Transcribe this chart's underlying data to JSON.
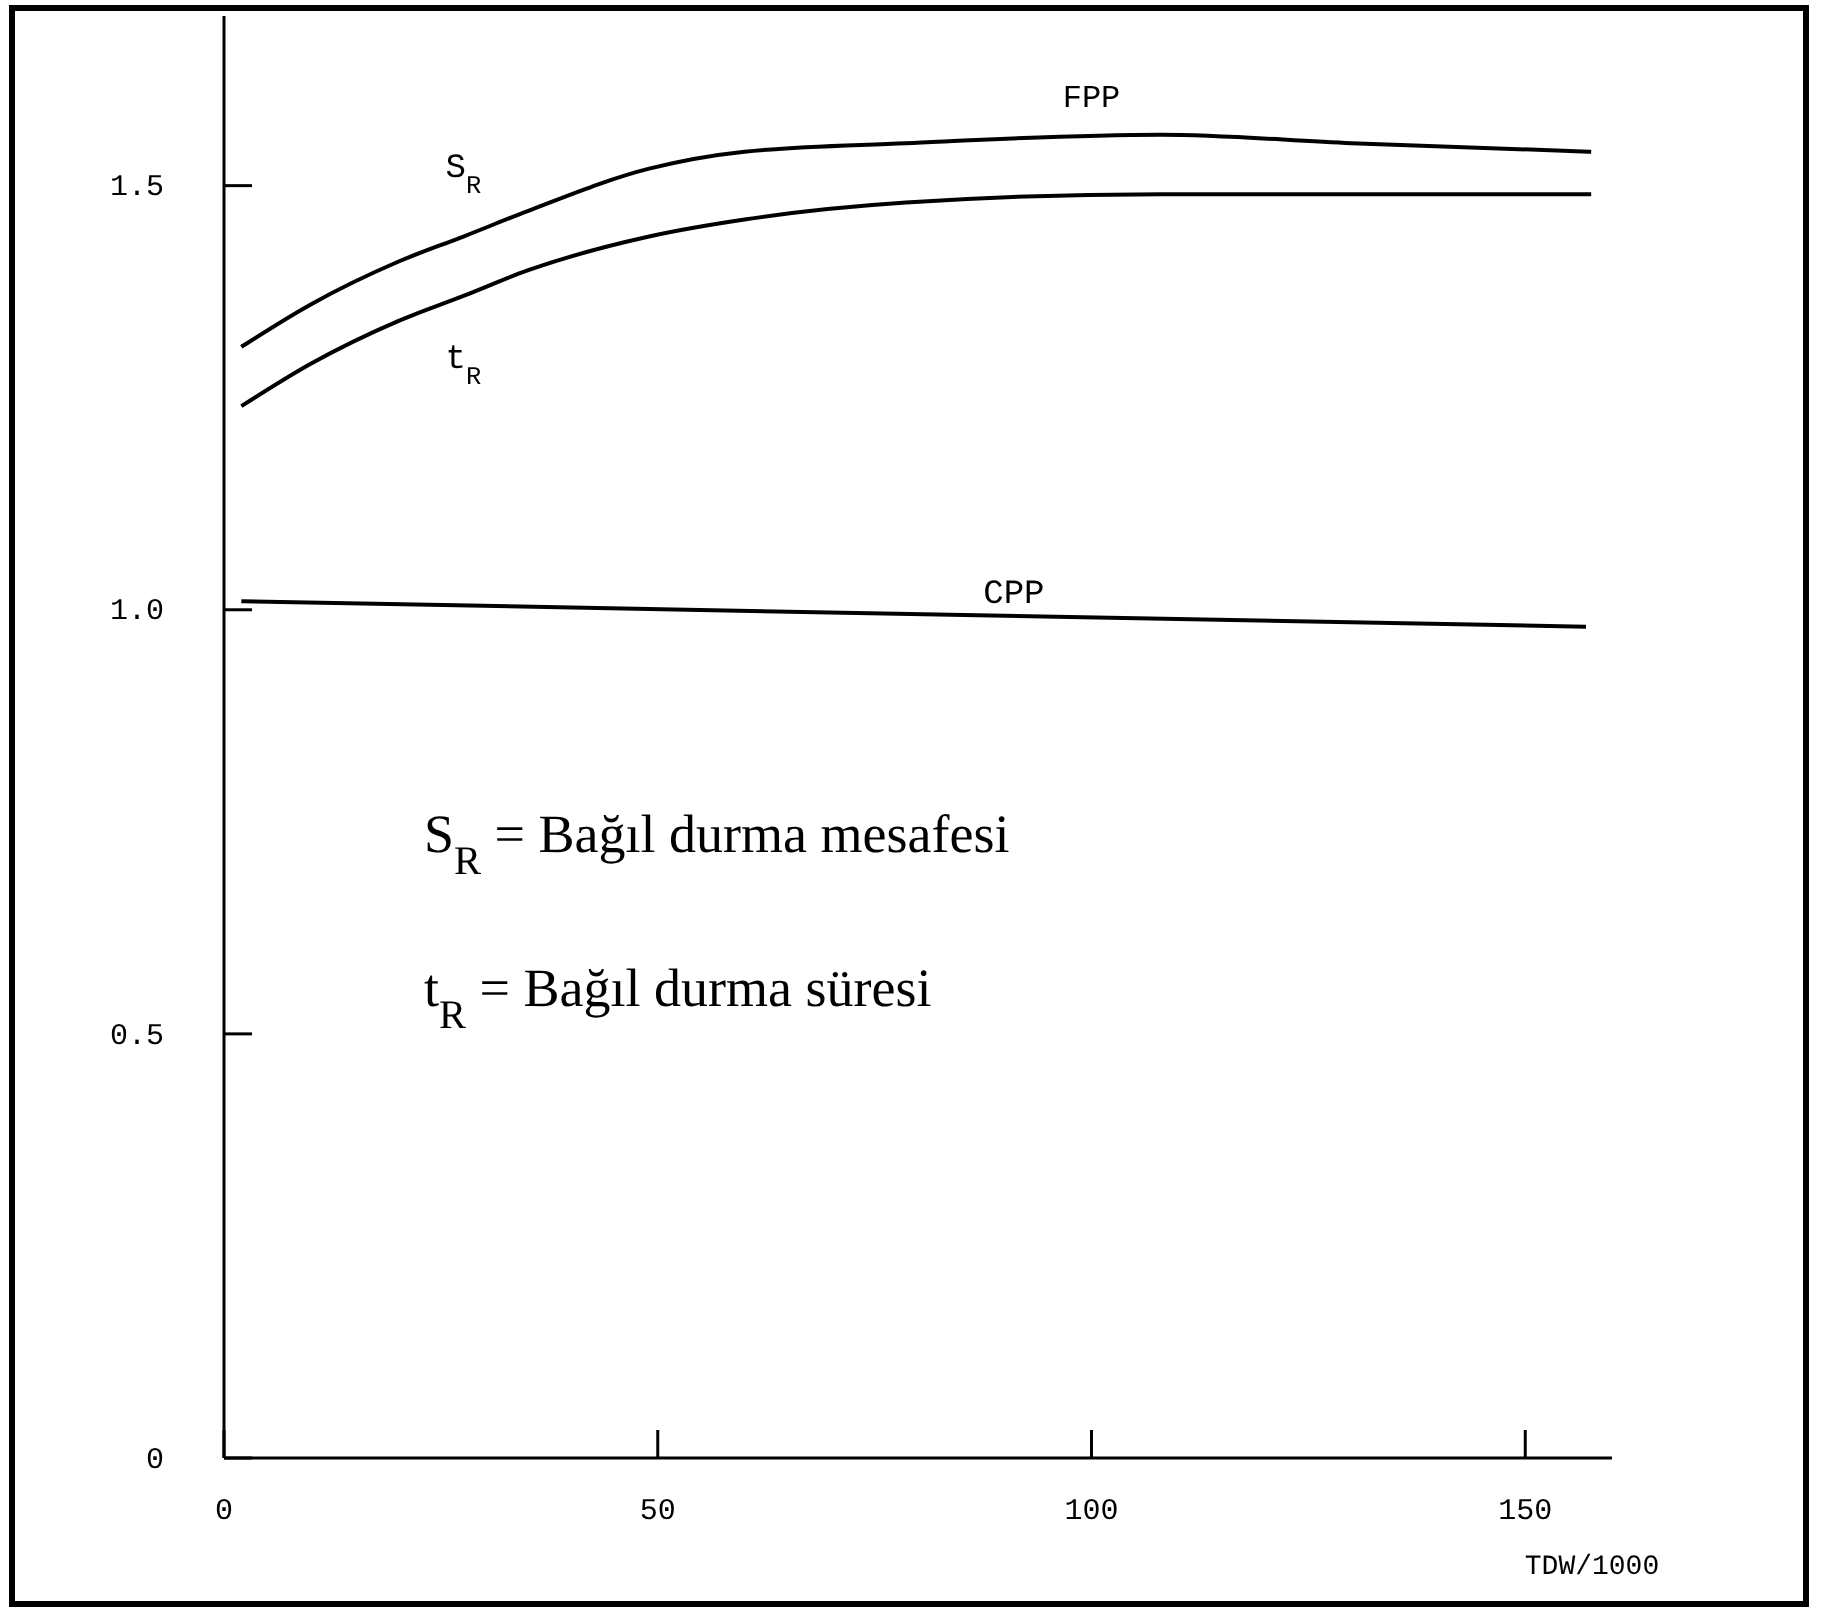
{
  "chart_data": {
    "type": "line",
    "xlabel": "TDW/1000",
    "xlim": [
      0,
      160
    ],
    "xticks": [
      0,
      50,
      100,
      150
    ],
    "ylim": [
      0,
      1.7
    ],
    "yticks": [
      0,
      0.5,
      {
        "value": 1,
        "label": "1.0"
      },
      1.5
    ],
    "grid": false,
    "marker": "none",
    "line_style": "solid",
    "series": [
      {
        "name": "S$_{R}$",
        "color": "#000000",
        "x": [
          2,
          10,
          20,
          27.6,
          35,
          49,
          60,
          78.6,
          108,
          130,
          157.6
        ],
        "values": [
          1.31,
          1.36,
          1.41,
          1.44,
          1.47,
          1.52,
          1.54,
          1.55,
          1.56,
          1.55,
          1.54
        ]
      },
      {
        "name": "t$_{R}$",
        "color": "#000000",
        "x": [
          2,
          10,
          20,
          27.6,
          35,
          49,
          60,
          78.6,
          108,
          130,
          157.6
        ],
        "values": [
          1.24,
          1.29,
          1.34,
          1.37,
          1.4,
          1.44,
          1.46,
          1.48,
          1.49,
          1.49,
          1.49
        ]
      },
      {
        "name": "CPP",
        "color": "#000000",
        "x": [
          2,
          157
        ],
        "values": [
          1.01,
          0.98
        ]
      }
    ],
    "annotations": [
      {
        "text": "FPP",
        "x": 100,
        "y": 1.56
      },
      "S$_{R}$ = Bağıl durma mesafesi",
      "t$_{R}$ = Bağıl durma süresi"
    ]
  }
}
